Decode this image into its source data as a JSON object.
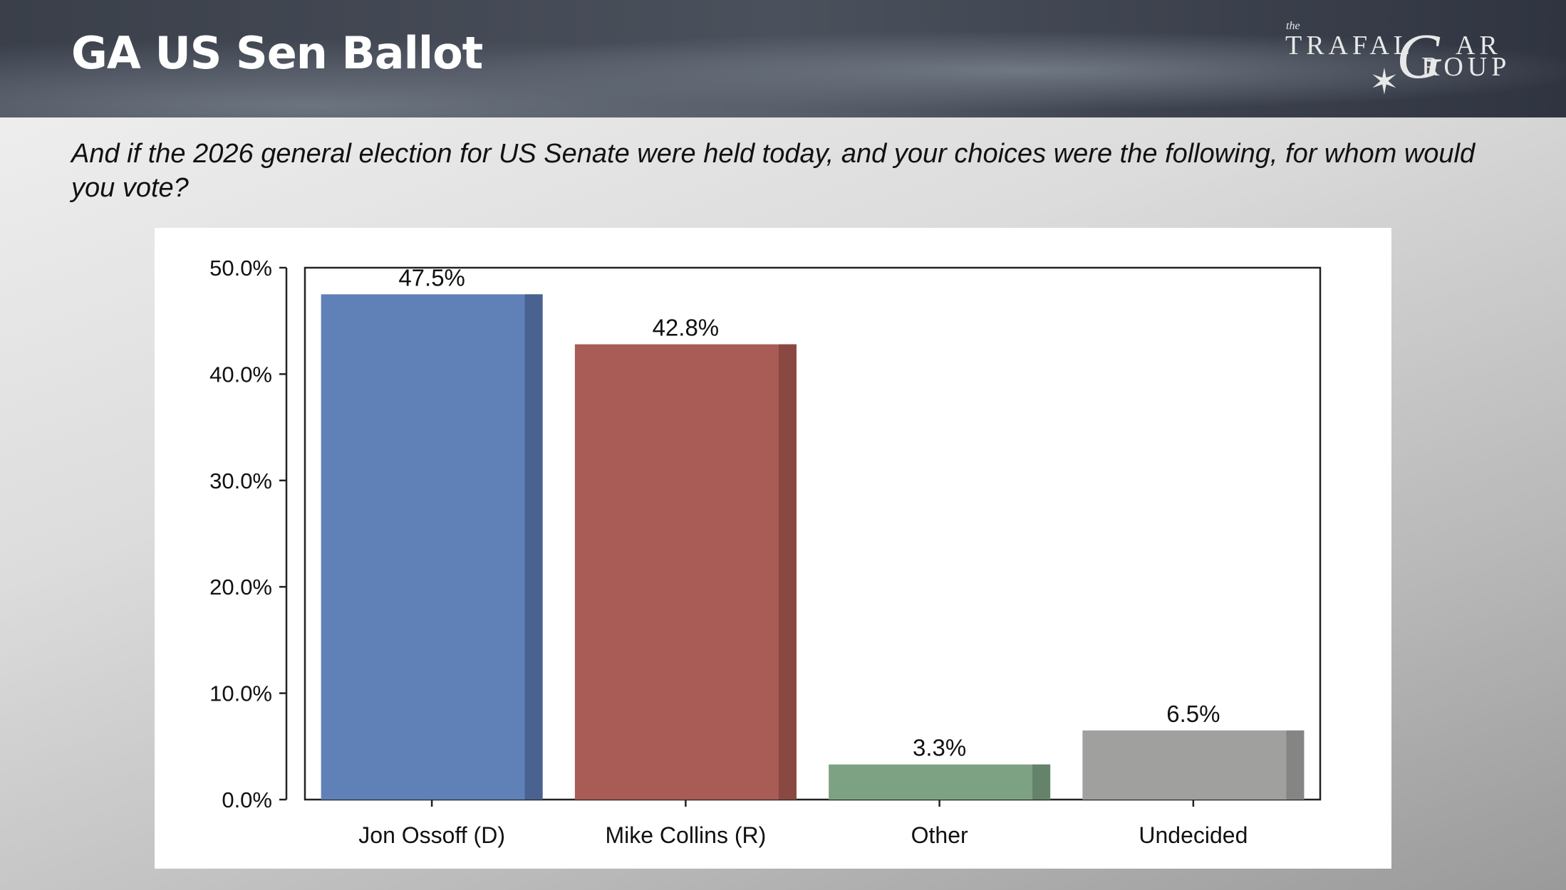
{
  "header": {
    "title": "GA US Sen Ballot",
    "logo": {
      "the": "the",
      "line1": "TRAFAL",
      "g": "G",
      "ar": "AR",
      "line2": "ROUP"
    }
  },
  "question": "And if the 2026 general election for US Senate were held today, and your choices were the following, for whom would you vote?",
  "chart_data": {
    "type": "bar",
    "categories": [
      "Jon Ossoff (D)",
      "Mike Collins (R)",
      "Other",
      "Undecided"
    ],
    "values": [
      47.5,
      42.8,
      3.3,
      6.5
    ],
    "data_labels": [
      "47.5%",
      "42.8%",
      "3.3%",
      "6.5%"
    ],
    "colors": [
      "#6080b8",
      "#a85c55",
      "#7da283",
      "#a0a09f"
    ],
    "side_colors": [
      "#4a6290",
      "#8a4843",
      "#64836a",
      "#858584"
    ],
    "ylim": [
      0,
      50
    ],
    "yticks": [
      0,
      10,
      20,
      30,
      40,
      50
    ],
    "ytick_labels": [
      "0.0%",
      "10.0%",
      "20.0%",
      "30.0%",
      "40.0%",
      "50.0%"
    ],
    "title": "",
    "xlabel": "",
    "ylabel": "",
    "grid": false,
    "legend": "none"
  }
}
